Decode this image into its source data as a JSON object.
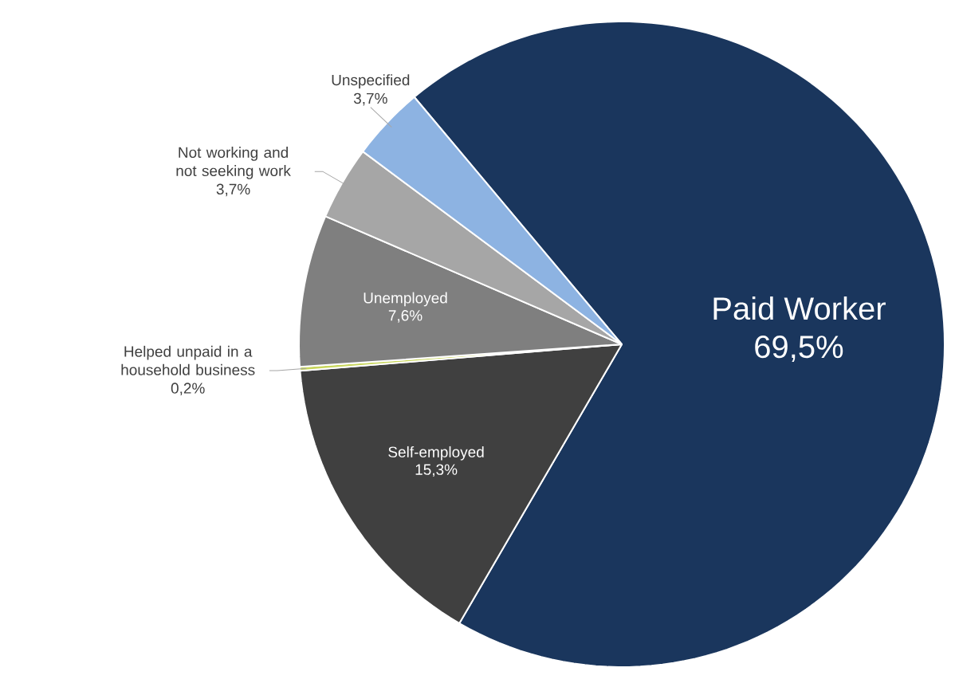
{
  "chart_data": {
    "type": "pie",
    "categories": [
      "Paid Worker",
      "Self-employed",
      "Helped unpaid in a household business",
      "Unemployed",
      "Not working and not seeking work",
      "Unspecified"
    ],
    "values": [
      69.5,
      15.3,
      0.2,
      7.6,
      3.7,
      3.7
    ],
    "value_labels": [
      "69,5%",
      "15,3%",
      "0,2%",
      "7,6%",
      "3,7%",
      "3,7%"
    ],
    "colors": [
      "#1a365d",
      "#404040",
      "#c8d65c",
      "#7f7f7f",
      "#a6a6a6",
      "#8db3e2"
    ]
  }
}
